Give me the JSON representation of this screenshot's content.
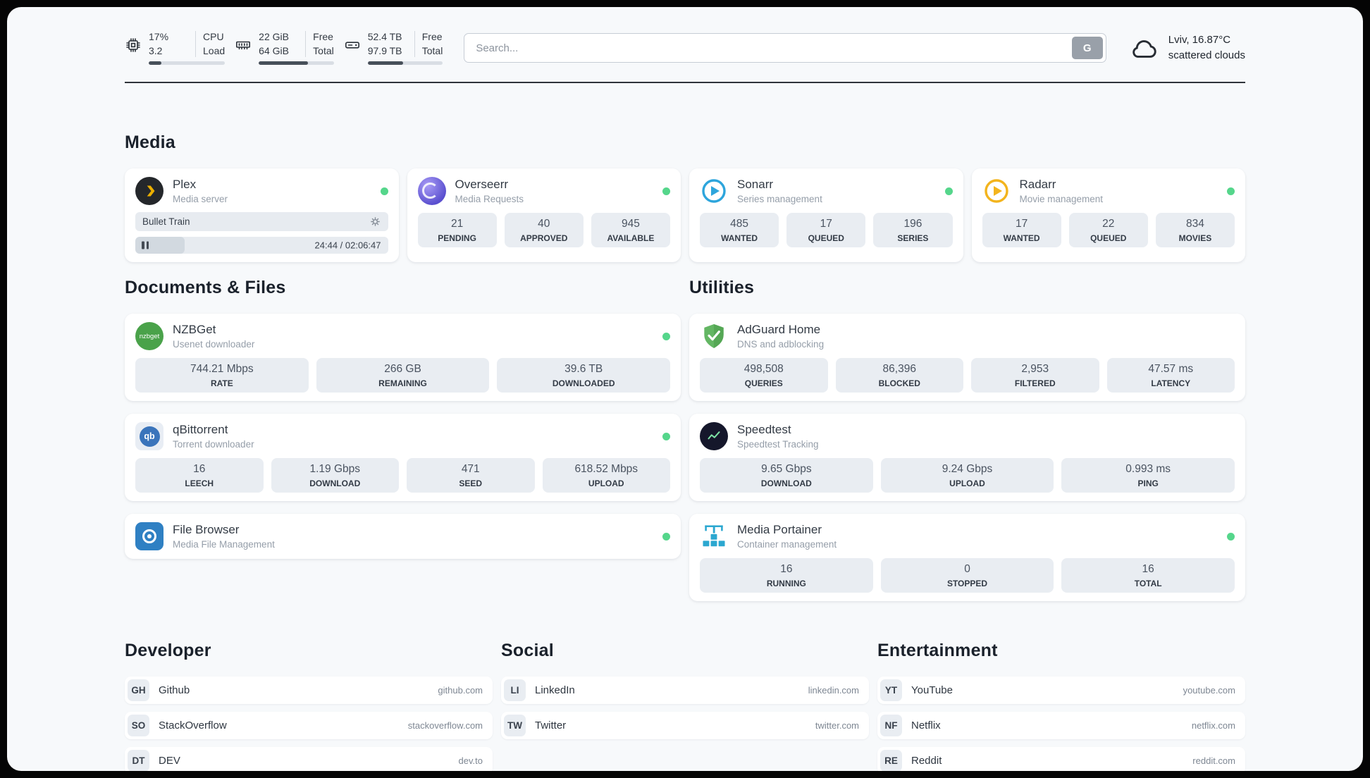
{
  "header": {
    "cpu": {
      "value": "17%",
      "secondary": "3.2",
      "label_top": "CPU",
      "label_bottom": "Load",
      "bar_percent": 17
    },
    "ram": {
      "value": "22 GiB",
      "secondary": "64 GiB",
      "label_top": "Free",
      "label_bottom": "Total",
      "bar_percent": 66
    },
    "disk": {
      "value": "52.4 TB",
      "secondary": "97.9 TB",
      "label_top": "Free",
      "label_bottom": "Total",
      "bar_percent": 47
    },
    "search": {
      "placeholder": "Search...",
      "engine_button": "G"
    },
    "weather": {
      "location": "Lviv, 16.87°C",
      "condition": "scattered clouds"
    }
  },
  "section_titles": {
    "media": "Media",
    "documents": "Documents & Files",
    "utilities": "Utilities",
    "developer": "Developer",
    "social": "Social",
    "entertainment": "Entertainment"
  },
  "services": {
    "plex": {
      "name": "Plex",
      "desc": "Media server",
      "now_playing": "Bullet Train",
      "time": "24:44 / 02:06:47",
      "progress_percent": 19.5
    },
    "overseerr": {
      "name": "Overseerr",
      "desc": "Media Requests",
      "stats": [
        {
          "value": "21",
          "label": "PENDING"
        },
        {
          "value": "40",
          "label": "APPROVED"
        },
        {
          "value": "945",
          "label": "AVAILABLE"
        }
      ]
    },
    "sonarr": {
      "name": "Sonarr",
      "desc": "Series management",
      "stats": [
        {
          "value": "485",
          "label": "WANTED"
        },
        {
          "value": "17",
          "label": "QUEUED"
        },
        {
          "value": "196",
          "label": "SERIES"
        }
      ]
    },
    "radarr": {
      "name": "Radarr",
      "desc": "Movie management",
      "stats": [
        {
          "value": "17",
          "label": "WANTED"
        },
        {
          "value": "22",
          "label": "QUEUED"
        },
        {
          "value": "834",
          "label": "MOVIES"
        }
      ]
    },
    "nzbget": {
      "name": "NZBGet",
      "desc": "Usenet downloader",
      "icon_text": "nzbget",
      "stats": [
        {
          "value": "744.21 Mbps",
          "label": "RATE"
        },
        {
          "value": "266 GB",
          "label": "REMAINING"
        },
        {
          "value": "39.6 TB",
          "label": "DOWNLOADED"
        }
      ]
    },
    "qbittorrent": {
      "name": "qBittorrent",
      "desc": "Torrent downloader",
      "icon_text": "qb",
      "stats": [
        {
          "value": "16",
          "label": "LEECH"
        },
        {
          "value": "1.19 Gbps",
          "label": "DOWNLOAD"
        },
        {
          "value": "471",
          "label": "SEED"
        },
        {
          "value": "618.52 Mbps",
          "label": "UPLOAD"
        }
      ]
    },
    "filebrowser": {
      "name": "File Browser",
      "desc": "Media File Management"
    },
    "adguard": {
      "name": "AdGuard Home",
      "desc": "DNS and adblocking",
      "stats": [
        {
          "value": "498,508",
          "label": "QUERIES"
        },
        {
          "value": "86,396",
          "label": "BLOCKED"
        },
        {
          "value": "2,953",
          "label": "FILTERED"
        },
        {
          "value": "47.57 ms",
          "label": "LATENCY"
        }
      ]
    },
    "speedtest": {
      "name": "Speedtest",
      "desc": "Speedtest Tracking",
      "stats": [
        {
          "value": "9.65 Gbps",
          "label": "DOWNLOAD"
        },
        {
          "value": "9.24 Gbps",
          "label": "UPLOAD"
        },
        {
          "value": "0.993 ms",
          "label": "PING"
        }
      ]
    },
    "portainer": {
      "name": "Media Portainer",
      "desc": "Container management",
      "stats": [
        {
          "value": "16",
          "label": "RUNNING"
        },
        {
          "value": "0",
          "label": "STOPPED"
        },
        {
          "value": "16",
          "label": "TOTAL"
        }
      ]
    }
  },
  "bookmarks": {
    "developer": [
      {
        "abbr": "GH",
        "name": "Github",
        "url": "github.com"
      },
      {
        "abbr": "SO",
        "name": "StackOverflow",
        "url": "stackoverflow.com"
      },
      {
        "abbr": "DT",
        "name": "DEV",
        "url": "dev.to"
      }
    ],
    "social": [
      {
        "abbr": "LI",
        "name": "LinkedIn",
        "url": "linkedin.com"
      },
      {
        "abbr": "TW",
        "name": "Twitter",
        "url": "twitter.com"
      }
    ],
    "entertainment": [
      {
        "abbr": "YT",
        "name": "YouTube",
        "url": "youtube.com"
      },
      {
        "abbr": "NF",
        "name": "Netflix",
        "url": "netflix.com"
      },
      {
        "abbr": "RE",
        "name": "Reddit",
        "url": "reddit.com"
      }
    ]
  }
}
